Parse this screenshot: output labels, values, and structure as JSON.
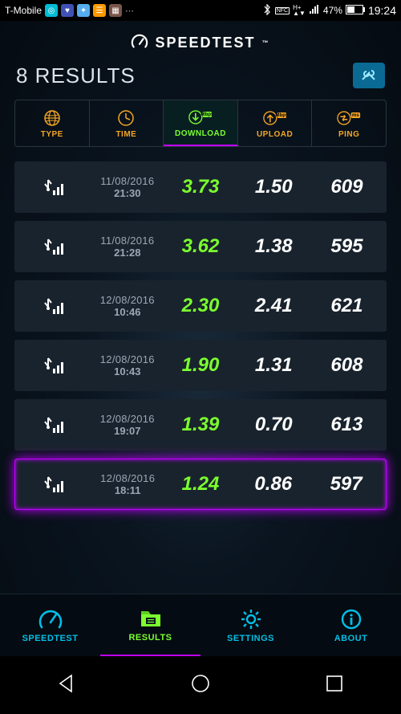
{
  "statusbar": {
    "carrier": "T-Mobile",
    "battery_pct": "47%",
    "clock": "19:24"
  },
  "app_title": "SPEEDTEST",
  "results_count": "8 RESULTS",
  "columns": {
    "type": "TYPE",
    "time": "TIME",
    "download": "DOWNLOAD",
    "download_unit": "Mbps",
    "upload": "UPLOAD",
    "upload_unit": "Mbps",
    "ping": "PING",
    "ping_unit": "ms"
  },
  "sort_column": "download",
  "rows": [
    {
      "date": "11/08/2016",
      "time": "21:30",
      "download": "3.73",
      "upload": "1.50",
      "ping": "609"
    },
    {
      "date": "11/08/2016",
      "time": "21:28",
      "download": "3.62",
      "upload": "1.38",
      "ping": "595"
    },
    {
      "date": "12/08/2016",
      "time": "10:46",
      "download": "2.30",
      "upload": "2.41",
      "ping": "621"
    },
    {
      "date": "12/08/2016",
      "time": "10:43",
      "download": "1.90",
      "upload": "1.31",
      "ping": "608"
    },
    {
      "date": "12/08/2016",
      "time": "19:07",
      "download": "1.39",
      "upload": "0.70",
      "ping": "613"
    },
    {
      "date": "12/08/2016",
      "time": "18:11",
      "download": "1.24",
      "upload": "0.86",
      "ping": "597"
    }
  ],
  "active_row_index": 5,
  "nav": {
    "speedtest": "SPEEDTEST",
    "results": "RESULTS",
    "settings": "SETTINGS",
    "about": "ABOUT"
  },
  "colors": {
    "accent_green": "#7bff2e",
    "accent_orange": "#f5a623",
    "accent_cyan": "#00bfe6",
    "accent_magenta": "#c000ff",
    "row_bg": "#19232d",
    "app_bg_dark": "#050b12"
  }
}
